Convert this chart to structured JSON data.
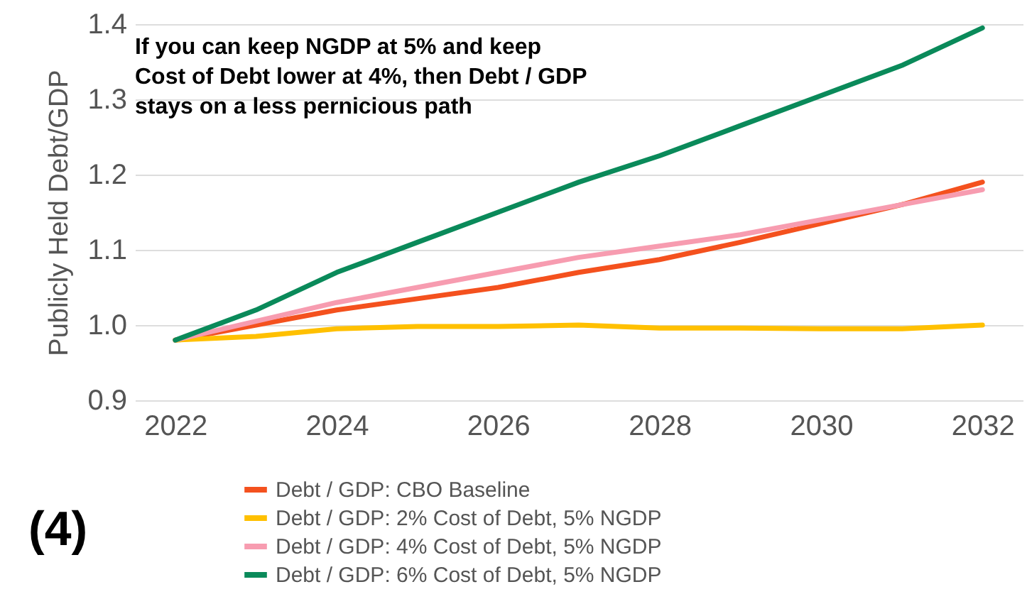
{
  "chart_data": {
    "type": "line",
    "ylabel": "Publicly Held Debt/GDP",
    "x": [
      2022,
      2023,
      2024,
      2025,
      2026,
      2027,
      2028,
      2029,
      2030,
      2031,
      2032
    ],
    "xlim": [
      2021.5,
      2032.5
    ],
    "xticks": [
      2022,
      2024,
      2026,
      2028,
      2030,
      2032
    ],
    "ylim": [
      0.9,
      1.4
    ],
    "yticks": [
      0.9,
      {
        "value": 1.0,
        "label": "1.0"
      },
      1.1,
      1.2,
      1.3,
      1.4
    ],
    "grid": "y",
    "legend": "bottom",
    "marker": "none",
    "line_style": "solid",
    "annotations": [
      "If you can keep NGDP at 5% and keep\nCost of Debt lower at 4%, then Debt / GDP\nstays on a less pernicious path",
      "(4)"
    ],
    "series": [
      {
        "name": "Debt / GDP: CBO Baseline",
        "color": "#f4511e",
        "values": [
          0.98,
          1.0,
          1.02,
          1.035,
          1.05,
          1.07,
          1.087,
          1.11,
          1.135,
          1.16,
          1.19
        ]
      },
      {
        "name": "Debt / GDP: 2% Cost of Debt, 5% NGDP",
        "color": "#ffc000",
        "values": [
          0.98,
          0.985,
          0.995,
          0.998,
          0.998,
          1.0,
          0.996,
          0.996,
          0.995,
          0.995,
          1.0
        ]
      },
      {
        "name": "Debt / GDP: 4% Cost of Debt, 5% NGDP",
        "color": "#f79cb0",
        "values": [
          0.98,
          1.005,
          1.03,
          1.05,
          1.07,
          1.09,
          1.105,
          1.12,
          1.14,
          1.16,
          1.18
        ]
      },
      {
        "name": "Debt / GDP: 6% Cost of Debt, 5% NGDP",
        "color": "#0a8a5a",
        "values": [
          0.98,
          1.02,
          1.07,
          1.11,
          1.15,
          1.19,
          1.225,
          1.265,
          1.305,
          1.345,
          1.395
        ]
      }
    ]
  }
}
